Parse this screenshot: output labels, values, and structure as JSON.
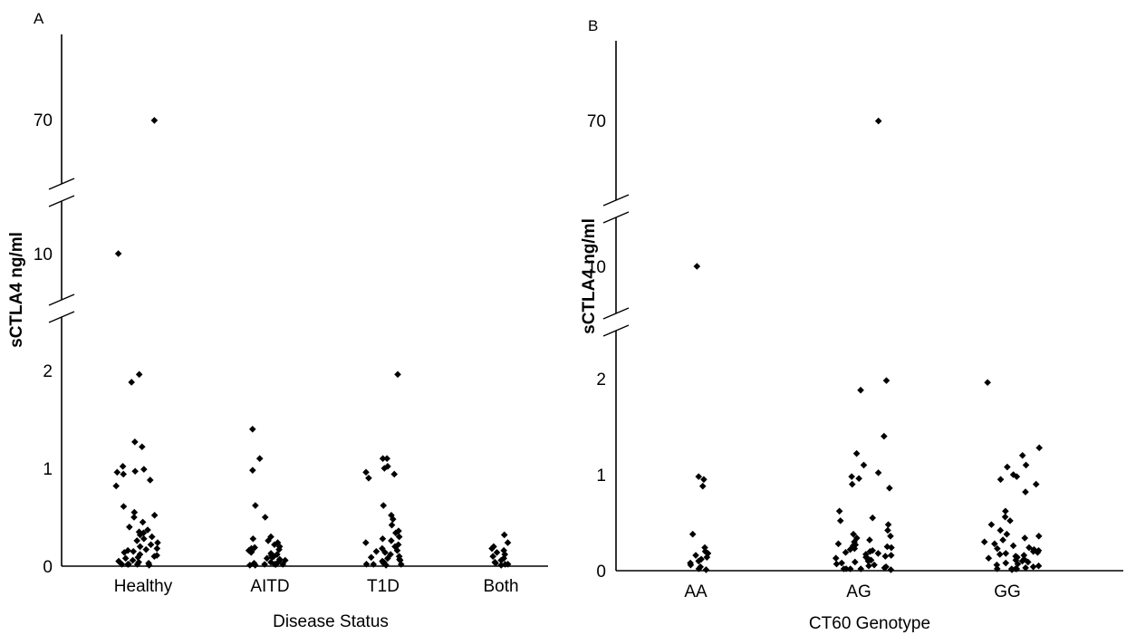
{
  "chart_data": [
    {
      "type": "scatter",
      "panel": "A",
      "xlabel": "Disease Status",
      "ylabel": "sCTLA4 ng/ml",
      "yscale": "broken",
      "categories": [
        "Healthy",
        "AITD",
        "T1D",
        "Both"
      ],
      "yticks": [
        "0",
        "1",
        "2",
        "10",
        "70"
      ],
      "grid": false,
      "series": [
        {
          "values": [
            [
              0,
              68.5
            ],
            [
              0,
              10.0
            ],
            [
              0,
              1.96
            ],
            [
              0,
              1.88
            ],
            [
              0,
              1.27
            ],
            [
              0,
              1.22
            ],
            [
              0,
              1.02
            ],
            [
              0,
              0.99
            ],
            [
              0,
              0.97
            ],
            [
              0,
              0.96
            ],
            [
              0,
              0.94
            ],
            [
              0,
              0.88
            ],
            [
              0,
              0.82
            ],
            [
              0,
              0.61
            ],
            [
              0,
              0.55
            ],
            [
              0,
              0.52
            ],
            [
              0,
              0.5
            ],
            [
              0,
              0.45
            ],
            [
              0,
              0.4
            ],
            [
              0,
              0.37
            ],
            [
              0,
              0.35
            ],
            [
              0,
              0.34
            ],
            [
              0,
              0.32
            ],
            [
              0,
              0.3
            ],
            [
              0,
              0.28
            ],
            [
              0,
              0.26
            ],
            [
              0,
              0.24
            ],
            [
              0,
              0.22
            ],
            [
              0,
              0.2
            ],
            [
              0,
              0.18
            ],
            [
              0,
              0.17
            ],
            [
              0,
              0.16
            ],
            [
              0,
              0.15
            ],
            [
              0,
              0.14
            ],
            [
              0,
              0.12
            ],
            [
              0,
              0.11
            ],
            [
              0,
              0.1
            ],
            [
              0,
              0.09
            ],
            [
              0,
              0.08
            ],
            [
              0,
              0.06
            ],
            [
              0,
              0.05
            ],
            [
              0,
              0.04
            ],
            [
              0,
              0.03
            ],
            [
              0,
              0.02
            ],
            [
              0,
              0.01
            ],
            [
              0,
              0.0
            ],
            [
              0,
              0.0
            ],
            [
              0,
              0.0
            ],
            [
              1,
              1.4
            ],
            [
              1,
              1.1
            ],
            [
              1,
              0.98
            ],
            [
              1,
              0.62
            ],
            [
              1,
              0.5
            ],
            [
              1,
              0.3
            ],
            [
              1,
              0.28
            ],
            [
              1,
              0.26
            ],
            [
              1,
              0.24
            ],
            [
              1,
              0.22
            ],
            [
              1,
              0.2
            ],
            [
              1,
              0.19
            ],
            [
              1,
              0.18
            ],
            [
              1,
              0.17
            ],
            [
              1,
              0.16
            ],
            [
              1,
              0.15
            ],
            [
              1,
              0.14
            ],
            [
              1,
              0.13
            ],
            [
              1,
              0.12
            ],
            [
              1,
              0.11
            ],
            [
              1,
              0.1
            ],
            [
              1,
              0.09
            ],
            [
              1,
              0.08
            ],
            [
              1,
              0.07
            ],
            [
              1,
              0.06
            ],
            [
              1,
              0.05
            ],
            [
              1,
              0.04
            ],
            [
              1,
              0.03
            ],
            [
              1,
              0.02
            ],
            [
              1,
              0.01
            ],
            [
              1,
              0.01
            ],
            [
              1,
              0.0
            ],
            [
              1,
              0.0
            ],
            [
              1,
              0.0
            ],
            [
              1,
              0.0
            ],
            [
              2,
              1.96
            ],
            [
              2,
              1.1
            ],
            [
              2,
              1.1
            ],
            [
              2,
              1.02
            ],
            [
              2,
              1.0
            ],
            [
              2,
              0.96
            ],
            [
              2,
              0.94
            ],
            [
              2,
              0.9
            ],
            [
              2,
              0.62
            ],
            [
              2,
              0.52
            ],
            [
              2,
              0.48
            ],
            [
              2,
              0.42
            ],
            [
              2,
              0.36
            ],
            [
              2,
              0.34
            ],
            [
              2,
              0.3
            ],
            [
              2,
              0.28
            ],
            [
              2,
              0.26
            ],
            [
              2,
              0.24
            ],
            [
              2,
              0.22
            ],
            [
              2,
              0.2
            ],
            [
              2,
              0.18
            ],
            [
              2,
              0.16
            ],
            [
              2,
              0.15
            ],
            [
              2,
              0.14
            ],
            [
              2,
              0.12
            ],
            [
              2,
              0.1
            ],
            [
              2,
              0.09
            ],
            [
              2,
              0.08
            ],
            [
              2,
              0.07
            ],
            [
              2,
              0.06
            ],
            [
              2,
              0.05
            ],
            [
              2,
              0.04
            ],
            [
              2,
              0.03
            ],
            [
              2,
              0.02
            ],
            [
              2,
              0.01
            ],
            [
              2,
              0.0
            ],
            [
              2,
              0.0
            ],
            [
              3,
              0.32
            ],
            [
              3,
              0.24
            ],
            [
              3,
              0.2
            ],
            [
              3,
              0.18
            ],
            [
              3,
              0.16
            ],
            [
              3,
              0.14
            ],
            [
              3,
              0.12
            ],
            [
              3,
              0.1
            ],
            [
              3,
              0.08
            ],
            [
              3,
              0.06
            ],
            [
              3,
              0.04
            ],
            [
              3,
              0.03
            ],
            [
              3,
              0.02
            ],
            [
              3,
              0.01
            ],
            [
              3,
              0.0
            ]
          ]
        }
      ]
    },
    {
      "type": "scatter",
      "panel": "B",
      "xlabel": "CT60 Genotype",
      "ylabel": "sCTLA4 ng/ml",
      "yscale": "broken",
      "categories": [
        "AA",
        "AG",
        "GG"
      ],
      "yticks": [
        "0",
        "1",
        "2",
        "10",
        "70"
      ],
      "grid": false,
      "series": [
        {
          "values": [
            [
              0,
              10.0
            ],
            [
              0,
              0.98
            ],
            [
              0,
              0.95
            ],
            [
              0,
              0.88
            ],
            [
              0,
              0.38
            ],
            [
              0,
              0.24
            ],
            [
              0,
              0.2
            ],
            [
              0,
              0.18
            ],
            [
              0,
              0.16
            ],
            [
              0,
              0.14
            ],
            [
              0,
              0.12
            ],
            [
              0,
              0.1
            ],
            [
              0,
              0.08
            ],
            [
              0,
              0.06
            ],
            [
              0,
              0.04
            ],
            [
              0,
              0.02
            ],
            [
              0,
              0.01
            ],
            [
              1,
              69.0
            ],
            [
              1,
              1.98
            ],
            [
              1,
              1.88
            ],
            [
              1,
              1.4
            ],
            [
              1,
              1.22
            ],
            [
              1,
              1.1
            ],
            [
              1,
              1.02
            ],
            [
              1,
              0.98
            ],
            [
              1,
              0.96
            ],
            [
              1,
              0.9
            ],
            [
              1,
              0.86
            ],
            [
              1,
              0.62
            ],
            [
              1,
              0.55
            ],
            [
              1,
              0.52
            ],
            [
              1,
              0.48
            ],
            [
              1,
              0.42
            ],
            [
              1,
              0.38
            ],
            [
              1,
              0.36
            ],
            [
              1,
              0.34
            ],
            [
              1,
              0.32
            ],
            [
              1,
              0.3
            ],
            [
              1,
              0.28
            ],
            [
              1,
              0.27
            ],
            [
              1,
              0.26
            ],
            [
              1,
              0.25
            ],
            [
              1,
              0.24
            ],
            [
              1,
              0.23
            ],
            [
              1,
              0.22
            ],
            [
              1,
              0.21
            ],
            [
              1,
              0.2
            ],
            [
              1,
              0.19
            ],
            [
              1,
              0.18
            ],
            [
              1,
              0.17
            ],
            [
              1,
              0.16
            ],
            [
              1,
              0.15
            ],
            [
              1,
              0.14
            ],
            [
              1,
              0.13
            ],
            [
              1,
              0.12
            ],
            [
              1,
              0.11
            ],
            [
              1,
              0.1
            ],
            [
              1,
              0.09
            ],
            [
              1,
              0.08
            ],
            [
              1,
              0.07
            ],
            [
              1,
              0.06
            ],
            [
              1,
              0.05
            ],
            [
              1,
              0.04
            ],
            [
              1,
              0.03
            ],
            [
              1,
              0.02
            ],
            [
              1,
              0.01
            ],
            [
              1,
              0.0
            ],
            [
              1,
              0.0
            ],
            [
              1,
              0.0
            ],
            [
              2,
              1.96
            ],
            [
              2,
              1.28
            ],
            [
              2,
              1.2
            ],
            [
              2,
              1.1
            ],
            [
              2,
              1.08
            ],
            [
              2,
              1.0
            ],
            [
              2,
              0.98
            ],
            [
              2,
              0.95
            ],
            [
              2,
              0.9
            ],
            [
              2,
              0.82
            ],
            [
              2,
              0.62
            ],
            [
              2,
              0.56
            ],
            [
              2,
              0.52
            ],
            [
              2,
              0.48
            ],
            [
              2,
              0.42
            ],
            [
              2,
              0.38
            ],
            [
              2,
              0.36
            ],
            [
              2,
              0.34
            ],
            [
              2,
              0.32
            ],
            [
              2,
              0.3
            ],
            [
              2,
              0.28
            ],
            [
              2,
              0.26
            ],
            [
              2,
              0.24
            ],
            [
              2,
              0.23
            ],
            [
              2,
              0.22
            ],
            [
              2,
              0.21
            ],
            [
              2,
              0.2
            ],
            [
              2,
              0.19
            ],
            [
              2,
              0.18
            ],
            [
              2,
              0.17
            ],
            [
              2,
              0.16
            ],
            [
              2,
              0.15
            ],
            [
              2,
              0.14
            ],
            [
              2,
              0.13
            ],
            [
              2,
              0.12
            ],
            [
              2,
              0.11
            ],
            [
              2,
              0.1
            ],
            [
              2,
              0.09
            ],
            [
              2,
              0.08
            ],
            [
              2,
              0.07
            ],
            [
              2,
              0.06
            ],
            [
              2,
              0.05
            ],
            [
              2,
              0.04
            ],
            [
              2,
              0.03
            ],
            [
              2,
              0.02
            ],
            [
              2,
              0.01
            ],
            [
              2,
              0.0
            ],
            [
              2,
              0.0
            ],
            [
              2,
              0.0
            ]
          ]
        }
      ]
    }
  ]
}
